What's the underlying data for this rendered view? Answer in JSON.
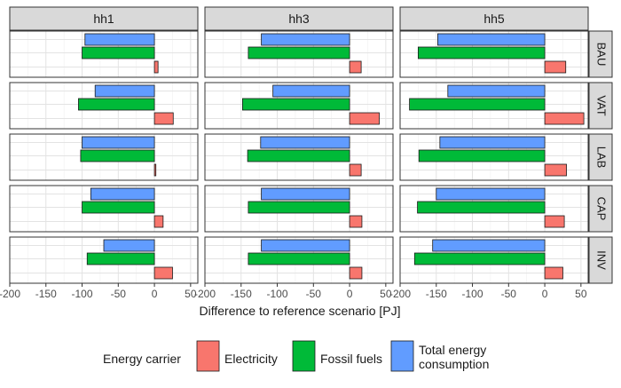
{
  "chart_data": {
    "type": "bar",
    "orientation": "horizontal",
    "facet_columns": [
      "hh1",
      "hh3",
      "hh5"
    ],
    "facet_rows": [
      "BAU",
      "VAT",
      "LAB",
      "CAP",
      "INV"
    ],
    "xlabel": "Difference to reference scenario [PJ]",
    "xlim": [
      -200,
      60
    ],
    "x_ticks": [
      -200,
      -150,
      -100,
      -50,
      0,
      50
    ],
    "x_tick_labels": [
      "-200",
      "-150",
      "-100",
      "-50",
      "0",
      "50"
    ],
    "grid": true,
    "legend": {
      "title": "Energy carrier",
      "position": "bottom",
      "entries": [
        {
          "key": "electricity",
          "label": "Electricity",
          "color": "#f8766d"
        },
        {
          "key": "fossil",
          "label": "Fossil fuels",
          "color": "#00ba38"
        },
        {
          "key": "total",
          "label": "Total energy consumption",
          "color": "#619cff"
        }
      ]
    },
    "series_order_top_to_bottom": [
      "total",
      "fossil",
      "electricity"
    ],
    "series": [
      {
        "key": "total",
        "name": "Total energy consumption",
        "color": "#619cff",
        "values": {
          "BAU": {
            "hh1": -96,
            "hh3": -122,
            "hh5": -148
          },
          "VAT": {
            "hh1": -82,
            "hh3": -106,
            "hh5": -134
          },
          "LAB": {
            "hh1": -100,
            "hh3": -123,
            "hh5": -145
          },
          "CAP": {
            "hh1": -88,
            "hh3": -122,
            "hh5": -150
          },
          "INV": {
            "hh1": -70,
            "hh3": -122,
            "hh5": -155
          }
        }
      },
      {
        "key": "fossil",
        "name": "Fossil fuels",
        "color": "#00ba38",
        "values": {
          "BAU": {
            "hh1": -100,
            "hh3": -140,
            "hh5": -175
          },
          "VAT": {
            "hh1": -105,
            "hh3": -148,
            "hh5": -187
          },
          "LAB": {
            "hh1": -102,
            "hh3": -141,
            "hh5": -174
          },
          "CAP": {
            "hh1": -100,
            "hh3": -140,
            "hh5": -176
          },
          "INV": {
            "hh1": -93,
            "hh3": -140,
            "hh5": -180
          }
        }
      },
      {
        "key": "electricity",
        "name": "Electricity",
        "color": "#f8766d",
        "values": {
          "BAU": {
            "hh1": 5,
            "hh3": 16,
            "hh5": 29
          },
          "VAT": {
            "hh1": 26,
            "hh3": 41,
            "hh5": 54
          },
          "LAB": {
            "hh1": 2,
            "hh3": 16,
            "hh5": 30
          },
          "CAP": {
            "hh1": 12,
            "hh3": 17,
            "hh5": 27
          },
          "INV": {
            "hh1": 25,
            "hh3": 17,
            "hh5": 25
          }
        }
      }
    ]
  }
}
